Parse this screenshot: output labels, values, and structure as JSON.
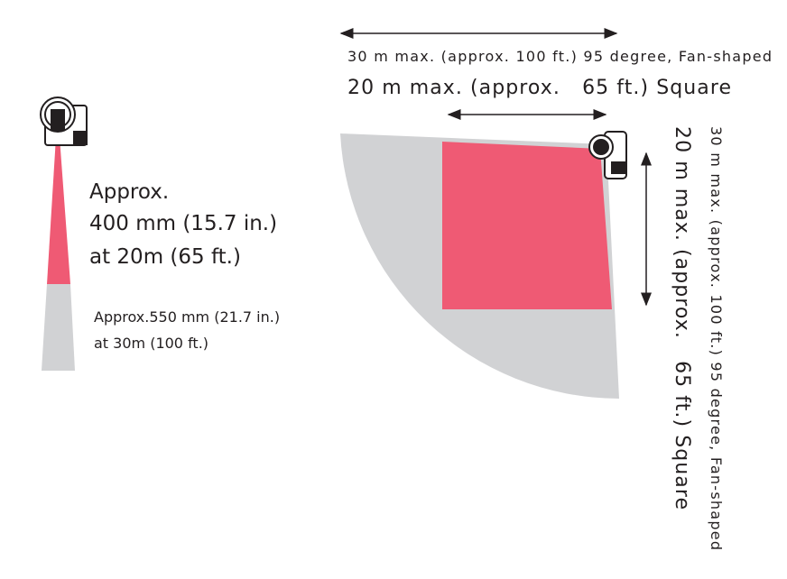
{
  "left_beam": {
    "near_label": [
      "Approx.",
      "400 mm (15.7 in.)",
      "at 20m (65 ft.)"
    ],
    "far_label": [
      "Approx.550 mm (21.7 in.)",
      "at 30m (100 ft.)"
    ]
  },
  "top_labels": {
    "fan": "30 m max. (approx. 100 ft.) 95 degree, Fan-shaped",
    "square": "20 m max. (approx.   65 ft.) Square"
  },
  "side_labels": {
    "fan": "30 m max. (approx. 100 ft.) 95 degree, Fan-shaped",
    "square": "20 m max. (approx.   65 ft.) Square"
  }
}
